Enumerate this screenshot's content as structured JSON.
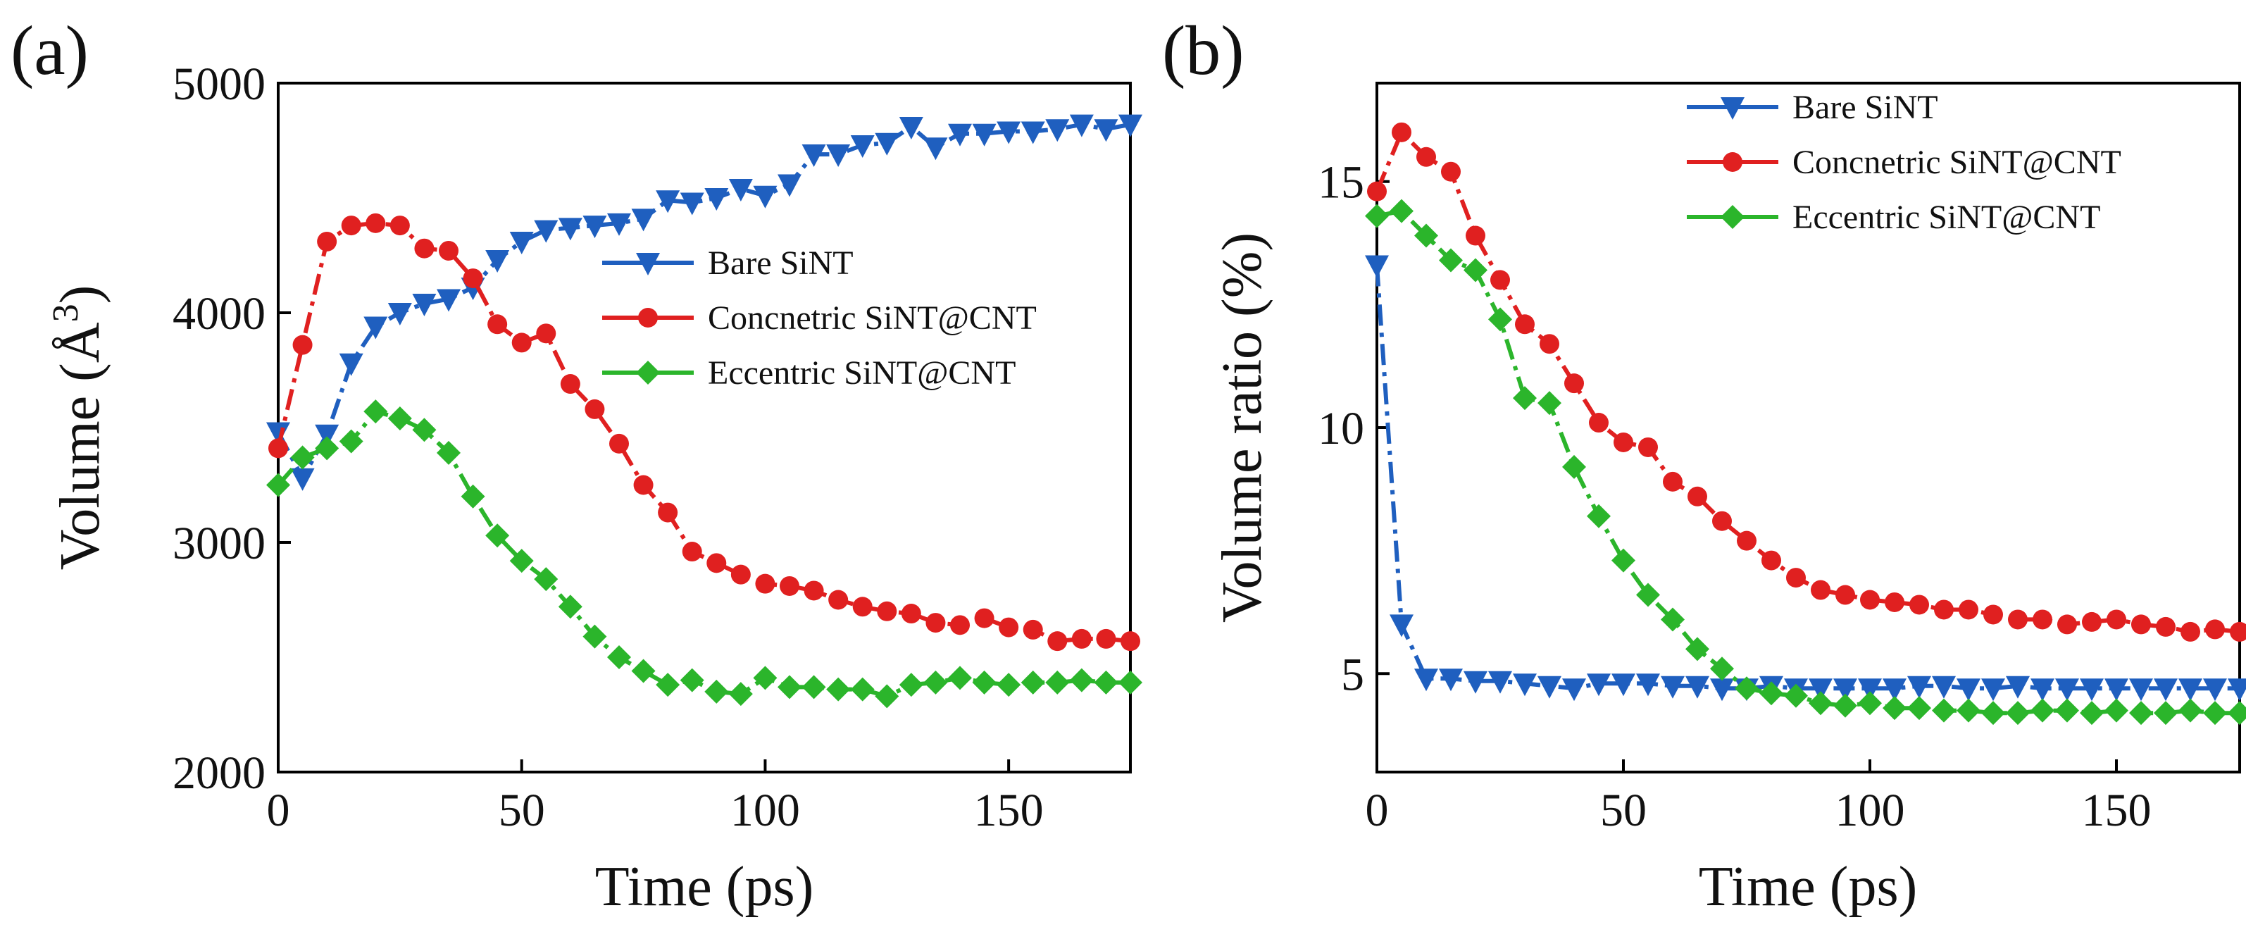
{
  "chart_data": [
    {
      "type": "line",
      "panel_label": "(a)",
      "title": "",
      "xlabel": "Time (ps)",
      "ylabel": "Volume (Å³)",
      "ylabel_main": "Volume (Å",
      "ylabel_sup": "3",
      "ylabel_close": ")",
      "xlim": [
        0,
        175
      ],
      "ylim": [
        2000,
        5000
      ],
      "xticks": [
        0,
        50,
        100,
        150
      ],
      "yticks": [
        2000,
        3000,
        4000,
        5000
      ],
      "grid": false,
      "legend_position": "center-right",
      "series": [
        {
          "name": "Bare SiNT",
          "color": "#1f5fbf",
          "marker": "triangle-down",
          "x": [
            0,
            5,
            10,
            15,
            20,
            25,
            30,
            35,
            40,
            45,
            50,
            55,
            60,
            65,
            70,
            75,
            80,
            85,
            90,
            95,
            100,
            105,
            110,
            115,
            120,
            125,
            130,
            135,
            140,
            145,
            150,
            155,
            160,
            165,
            170,
            175
          ],
          "y": [
            3480,
            3280,
            3470,
            3780,
            3940,
            4000,
            4040,
            4060,
            4110,
            4230,
            4310,
            4360,
            4370,
            4380,
            4390,
            4410,
            4490,
            4480,
            4500,
            4540,
            4510,
            4560,
            4690,
            4690,
            4730,
            4740,
            4810,
            4720,
            4780,
            4780,
            4790,
            4790,
            4800,
            4820,
            4800,
            4820
          ]
        },
        {
          "name": "Concnetric SiNT@CNT",
          "color": "#e02020",
          "marker": "circle",
          "x": [
            0,
            5,
            10,
            15,
            20,
            25,
            30,
            35,
            40,
            45,
            50,
            55,
            60,
            65,
            70,
            75,
            80,
            85,
            90,
            95,
            100,
            105,
            110,
            115,
            120,
            125,
            130,
            135,
            140,
            145,
            150,
            155,
            160,
            165,
            170,
            175
          ],
          "y": [
            3410,
            3860,
            4310,
            4380,
            4390,
            4380,
            4280,
            4270,
            4150,
            3950,
            3870,
            3910,
            3690,
            3580,
            3430,
            3250,
            3130,
            2960,
            2910,
            2860,
            2820,
            2810,
            2790,
            2750,
            2720,
            2700,
            2690,
            2650,
            2640,
            2670,
            2630,
            2620,
            2570,
            2580,
            2580,
            2570
          ]
        },
        {
          "name": "Eccentric SiNT@CNT",
          "color": "#2bb52b",
          "marker": "diamond",
          "x": [
            0,
            5,
            10,
            15,
            20,
            25,
            30,
            35,
            40,
            45,
            50,
            55,
            60,
            65,
            70,
            75,
            80,
            85,
            90,
            95,
            100,
            105,
            110,
            115,
            120,
            125,
            130,
            135,
            140,
            145,
            150,
            155,
            160,
            165,
            170,
            175
          ],
          "y": [
            3250,
            3370,
            3410,
            3440,
            3570,
            3540,
            3490,
            3390,
            3200,
            3030,
            2920,
            2840,
            2720,
            2590,
            2500,
            2440,
            2380,
            2400,
            2350,
            2340,
            2410,
            2370,
            2370,
            2360,
            2360,
            2330,
            2380,
            2390,
            2410,
            2390,
            2380,
            2390,
            2390,
            2400,
            2390,
            2390
          ]
        }
      ]
    },
    {
      "type": "line",
      "panel_label": "(b)",
      "title": "",
      "xlabel": "Time (ps)",
      "ylabel": "Volume ratio (%)",
      "xlim": [
        0,
        175
      ],
      "ylim": [
        3,
        17
      ],
      "xticks": [
        0,
        50,
        100,
        150
      ],
      "yticks": [
        5,
        10,
        15
      ],
      "grid": false,
      "legend_position": "top-right",
      "series": [
        {
          "name": "Bare SiNT",
          "color": "#1f5fbf",
          "marker": "triangle-down",
          "x": [
            0,
            5,
            10,
            15,
            20,
            25,
            30,
            35,
            40,
            45,
            50,
            55,
            60,
            65,
            70,
            75,
            80,
            85,
            90,
            95,
            100,
            105,
            110,
            115,
            120,
            125,
            130,
            135,
            140,
            145,
            150,
            155,
            160,
            165,
            170,
            175
          ],
          "y": [
            13.3,
            6.0,
            4.9,
            4.9,
            4.85,
            4.85,
            4.8,
            4.75,
            4.7,
            4.8,
            4.8,
            4.8,
            4.75,
            4.75,
            4.7,
            4.7,
            4.75,
            4.7,
            4.7,
            4.7,
            4.7,
            4.7,
            4.75,
            4.75,
            4.7,
            4.7,
            4.75,
            4.7,
            4.7,
            4.7,
            4.7,
            4.7,
            4.7,
            4.7,
            4.7,
            4.7
          ]
        },
        {
          "name": "Concnetric SiNT@CNT",
          "color": "#e02020",
          "marker": "circle",
          "x": [
            0,
            5,
            10,
            15,
            20,
            25,
            30,
            35,
            40,
            45,
            50,
            55,
            60,
            65,
            70,
            75,
            80,
            85,
            90,
            95,
            100,
            105,
            110,
            115,
            120,
            125,
            130,
            135,
            140,
            145,
            150,
            155,
            160,
            165,
            170,
            175
          ],
          "y": [
            14.8,
            16.0,
            15.5,
            15.2,
            13.9,
            13.0,
            12.1,
            11.7,
            10.9,
            10.1,
            9.7,
            9.6,
            8.9,
            8.6,
            8.1,
            7.7,
            7.3,
            6.95,
            6.7,
            6.6,
            6.5,
            6.45,
            6.4,
            6.3,
            6.3,
            6.2,
            6.1,
            6.1,
            6.0,
            6.05,
            6.1,
            6.0,
            5.95,
            5.85,
            5.9,
            5.85
          ]
        },
        {
          "name": "Eccentric SiNT@CNT",
          "color": "#2bb52b",
          "marker": "diamond",
          "x": [
            0,
            5,
            10,
            15,
            20,
            25,
            30,
            35,
            40,
            45,
            50,
            55,
            60,
            65,
            70,
            75,
            80,
            85,
            90,
            95,
            100,
            105,
            110,
            115,
            120,
            125,
            130,
            135,
            140,
            145,
            150,
            155,
            160,
            165,
            170,
            175
          ],
          "y": [
            14.3,
            14.4,
            13.9,
            13.4,
            13.2,
            12.2,
            10.6,
            10.5,
            9.2,
            8.2,
            7.3,
            6.6,
            6.1,
            5.5,
            5.1,
            4.7,
            4.6,
            4.55,
            4.4,
            4.35,
            4.4,
            4.3,
            4.3,
            4.25,
            4.25,
            4.2,
            4.2,
            4.25,
            4.25,
            4.2,
            4.25,
            4.2,
            4.2,
            4.25,
            4.2,
            4.2
          ]
        }
      ]
    }
  ]
}
